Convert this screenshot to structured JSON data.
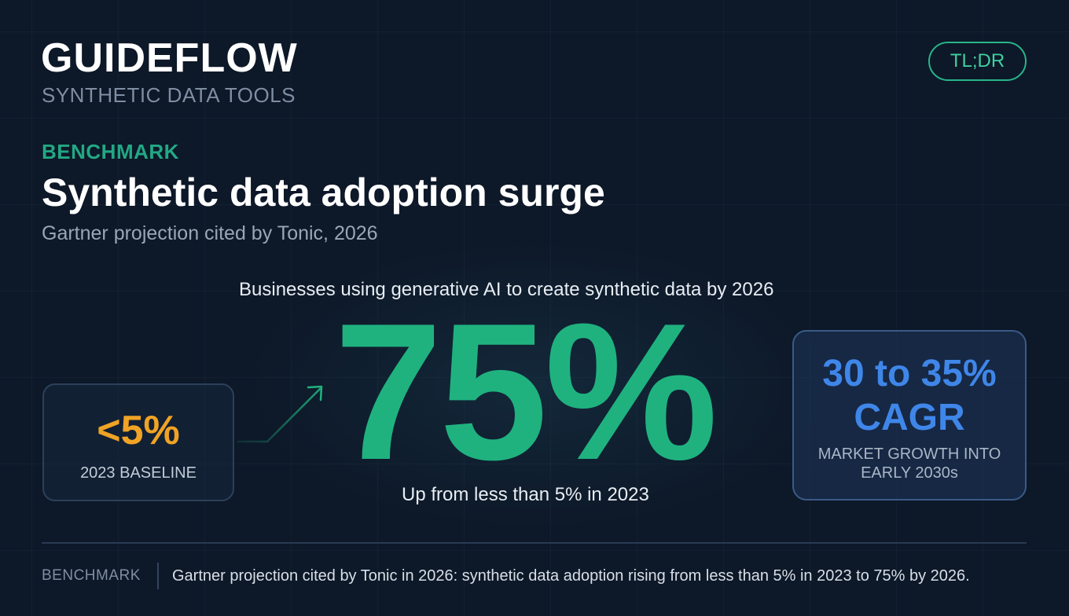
{
  "brand": {
    "name": "GUIDEFLOW",
    "subtitle": "SYNTHETIC DATA TOOLS",
    "badge": "TL;DR"
  },
  "header": {
    "kicker": "BENCHMARK",
    "title": "Synthetic data adoption surge",
    "subtitle": "Gartner projection cited by Tonic, 2026"
  },
  "main_stat": {
    "caption": "Businesses using generative AI to create synthetic data by 2026",
    "value": "75%",
    "note": "Up from less than 5% in 2023"
  },
  "baseline_card": {
    "value": "<5%",
    "label": "2023 BASELINE"
  },
  "growth_card": {
    "value_line1": "30 to 35%",
    "value_line2": "CAGR",
    "label": "MARKET GROWTH INTO EARLY 2030s"
  },
  "footer": {
    "tag": "BENCHMARK",
    "text": "Gartner projection cited by Tonic in 2026: synthetic data adoption rising from less than 5% in 2023 to 75% by 2026."
  },
  "colors": {
    "background": "#0d1828",
    "accent_green": "#1fb27f",
    "accent_orange": "#f0a324",
    "accent_blue": "#3f86e9"
  },
  "icons": {
    "growth_arrow": "arrow-up-right-icon"
  }
}
